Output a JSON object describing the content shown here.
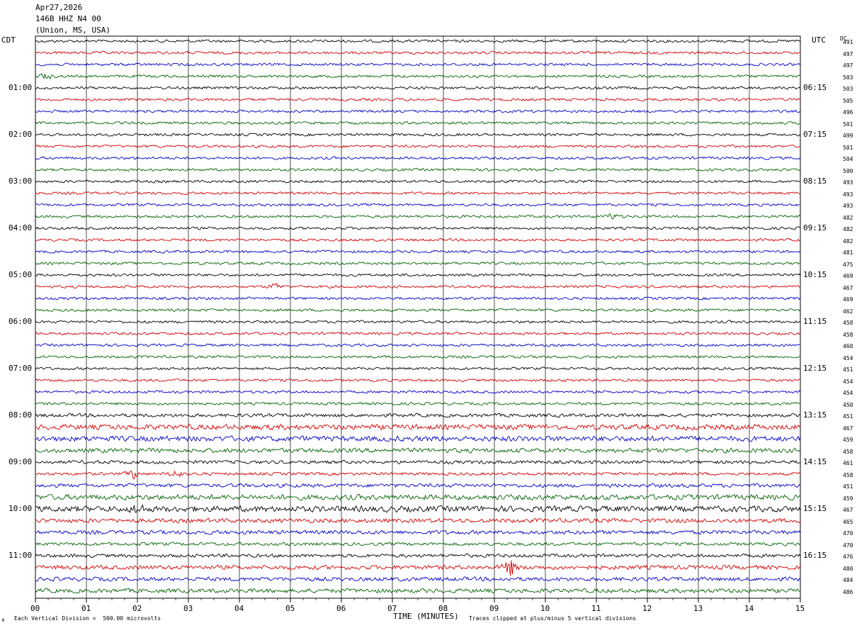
{
  "header": {
    "date": "Apr27,2026",
    "channel": "146B HHZ N4 00",
    "location": "(Union, MS, USA)"
  },
  "left_zone_label": "CDT",
  "right_zone_label": "UTC",
  "dc_label": "DC",
  "footer": {
    "scale_mark": "∧",
    "scale_note": "Each Vertical Division =  500.00 microvolts",
    "xlabel": "TIME (MINUTES)",
    "clip_note": "Traces clipped at plus/minus 5 vertical divisions"
  },
  "colors": {
    "traces": [
      "#000000",
      "#d40000",
      "#0000c8",
      "#006400"
    ],
    "grid": "#000000",
    "background": "#ffffff"
  },
  "chart_data": {
    "type": "line",
    "title": "",
    "xlim": [
      0,
      15
    ],
    "x_ticks": [
      "00",
      "01",
      "02",
      "03",
      "04",
      "05",
      "06",
      "07",
      "08",
      "09",
      "10",
      "11",
      "12",
      "13",
      "14",
      "15"
    ],
    "rows_per_hour": 4,
    "hour_labels_local": [
      {
        "row": 4,
        "label": "01:00"
      },
      {
        "row": 8,
        "label": "02:00"
      },
      {
        "row": 12,
        "label": "03:00"
      },
      {
        "row": 16,
        "label": "04:00"
      },
      {
        "row": 20,
        "label": "05:00"
      },
      {
        "row": 24,
        "label": "06:00"
      },
      {
        "row": 28,
        "label": "07:00"
      },
      {
        "row": 32,
        "label": "08:00"
      },
      {
        "row": 36,
        "label": "09:00"
      },
      {
        "row": 40,
        "label": "10:00"
      },
      {
        "row": 44,
        "label": "11:00"
      }
    ],
    "hour_labels_utc": [
      {
        "row": 4,
        "label": "06:15"
      },
      {
        "row": 8,
        "label": "07:15"
      },
      {
        "row": 12,
        "label": "08:15"
      },
      {
        "row": 16,
        "label": "09:15"
      },
      {
        "row": 20,
        "label": "10:15"
      },
      {
        "row": 24,
        "label": "11:15"
      },
      {
        "row": 28,
        "label": "12:15"
      },
      {
        "row": 32,
        "label": "13:15"
      },
      {
        "row": 36,
        "label": "14:15"
      },
      {
        "row": 40,
        "label": "15:15"
      },
      {
        "row": 44,
        "label": "16:15"
      }
    ],
    "dc_offsets": [
      491,
      497,
      497,
      503,
      503,
      505,
      496,
      501,
      499,
      501,
      504,
      500,
      493,
      493,
      493,
      482,
      482,
      482,
      481,
      475,
      469,
      467,
      469,
      462,
      458,
      458,
      460,
      454,
      451,
      454,
      454,
      450,
      451,
      467,
      459,
      458,
      461,
      458,
      451,
      459,
      467,
      465,
      470,
      470,
      476,
      480,
      484,
      486
    ],
    "row_amplitude": [
      1,
      1,
      1,
      1,
      1,
      1,
      1,
      1,
      1,
      1,
      1,
      1,
      1,
      1,
      1,
      1,
      1,
      1,
      1,
      1,
      1,
      1,
      1,
      1,
      1,
      1,
      1,
      1,
      1,
      1,
      1,
      1,
      1.3,
      2,
      2,
      1.7,
      1.3,
      1.1,
      1.4,
      2,
      2.2,
      1.6,
      1.5,
      1.2,
      1.3,
      1.6,
      1.5,
      1.6
    ],
    "events": [
      {
        "row": 3,
        "minute": 0.2,
        "amplitude": 2
      },
      {
        "row": 15,
        "minute": 11.3,
        "amplitude": 2
      },
      {
        "row": 21,
        "minute": 4.7,
        "amplitude": 2.2
      },
      {
        "row": 37,
        "minute": 1.9,
        "amplitude": 3
      },
      {
        "row": 37,
        "minute": 2.75,
        "amplitude": 2.5
      },
      {
        "row": 40,
        "minute": 2.0,
        "amplitude": 1.5
      },
      {
        "row": 45,
        "minute": 9.3,
        "amplitude": 4.5
      }
    ]
  }
}
